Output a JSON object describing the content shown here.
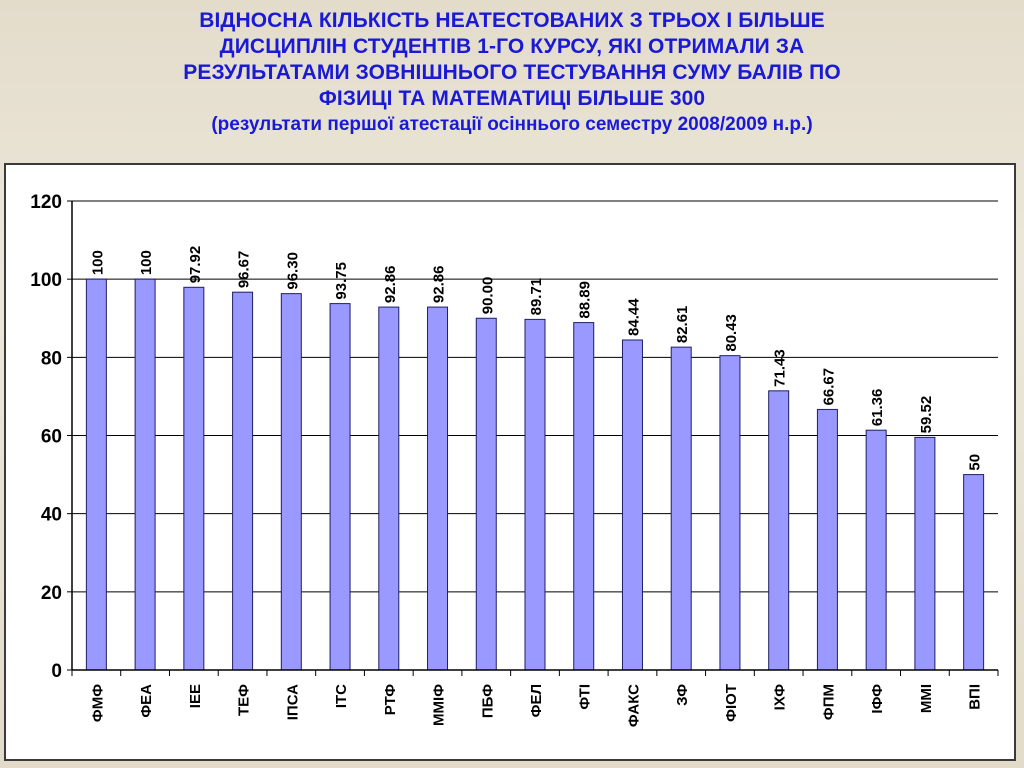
{
  "title_lines": [
    "ВІДНОСНА КІЛЬКІСТЬ НЕАТЕСТОВАНИХ   З  ТРЬОХ  І  БІЛЬШЕ",
    "ДИСЦИПЛІН СТУДЕНТІВ 1-ГО КУРСУ, ЯКІ ОТРИМАЛИ ЗА",
    "РЕЗУЛЬТАТАМИ ЗОВНІШНЬОГО ТЕСТУВАННЯ СУМУ БАЛІВ ПО",
    "ФІЗИЦІ ТА МАТЕМАТИЦІ БІЛЬШЕ 300"
  ],
  "subtitle": "(результати першої атестації осіннього семестру 2008/2009 н.р.)",
  "colors": {
    "title": "#1a1ad6",
    "bar_fill": "#9999ff",
    "bar_stroke": "#1e1e66",
    "gridline": "#000000"
  },
  "chart_data": {
    "type": "bar",
    "categories": [
      "ФМФ",
      "ФЕА",
      "ІЕЕ",
      "ТЕФ",
      "ІПСА",
      "ІТС",
      "РТФ",
      "ММІФ",
      "ПБФ",
      "ФЕЛ",
      "ФТІ",
      "ФАКС",
      "ЗФ",
      "ФІОТ",
      "ІХФ",
      "ФПМ",
      "ІФФ",
      "ММІ",
      "ВПІ"
    ],
    "values": [
      100,
      100,
      97.92,
      96.67,
      96.3,
      93.75,
      92.86,
      92.86,
      90.0,
      89.71,
      88.89,
      84.44,
      82.61,
      80.43,
      71.43,
      66.67,
      61.36,
      59.52,
      50
    ],
    "data_labels": [
      "100",
      "100",
      "97.92",
      "96.67",
      "96.30",
      "93.75",
      "92.86",
      "92.86",
      "90.00",
      "89.71",
      "88.89",
      "84.44",
      "82.61",
      "80.43",
      "71.43",
      "66.67",
      "61.36",
      "59.52",
      "50"
    ],
    "yticks": [
      "0",
      "20",
      "40",
      "60",
      "80",
      "100",
      "120"
    ],
    "ylim": [
      0,
      120
    ],
    "xlabel": "",
    "ylabel": "",
    "grid": true,
    "legend": "none"
  }
}
